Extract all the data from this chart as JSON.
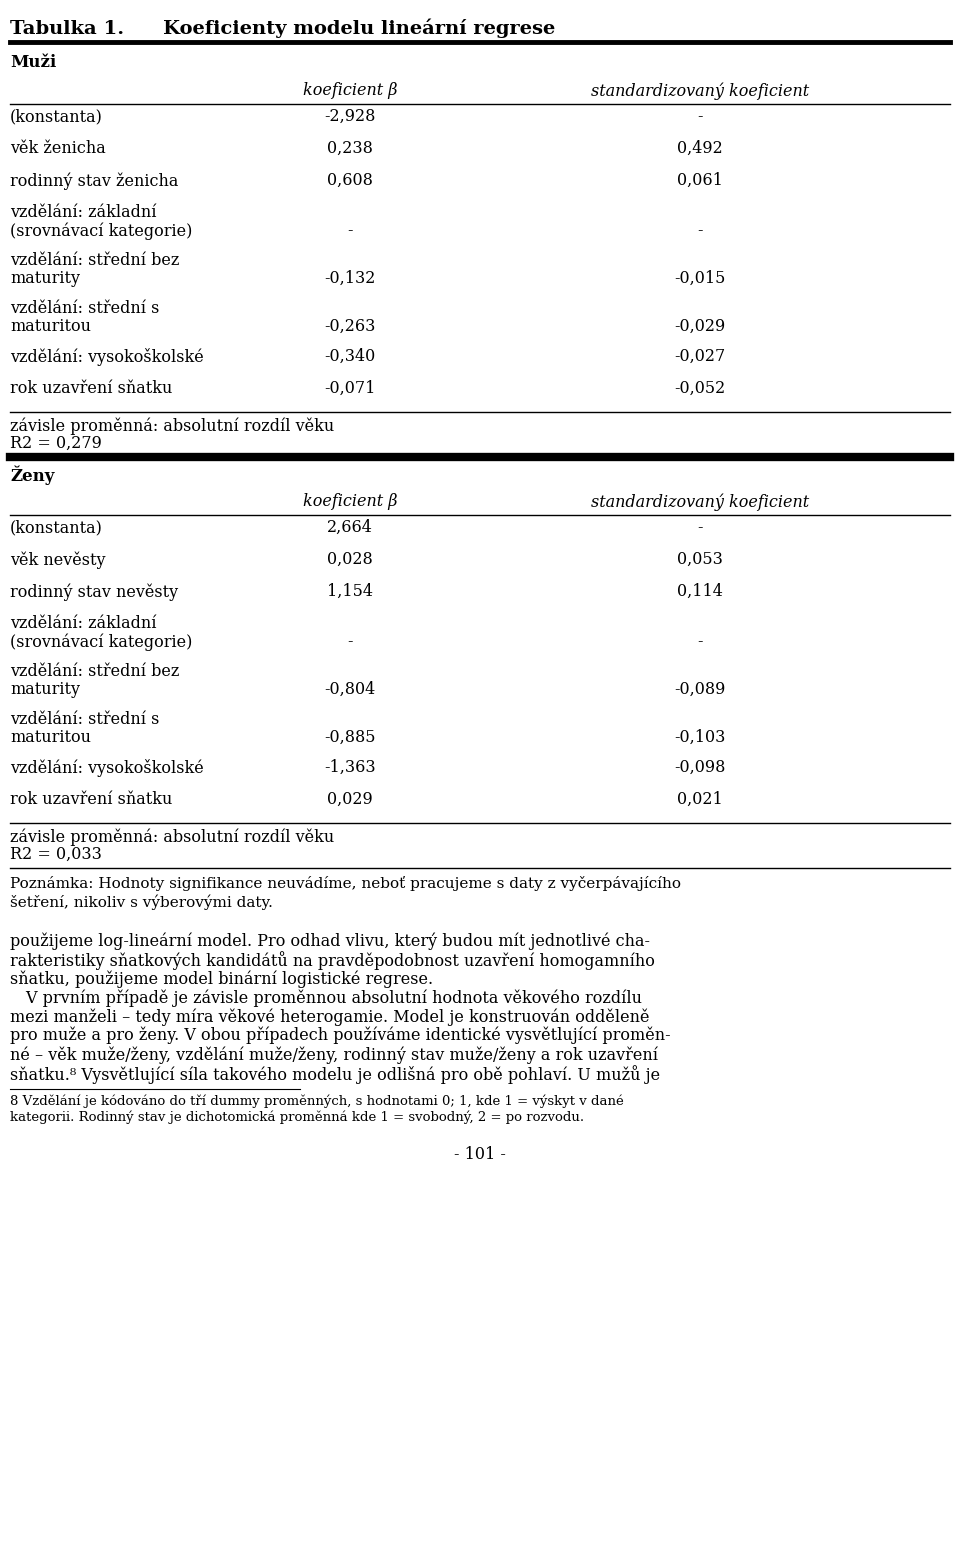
{
  "title": "Tabulka 1.  Koeficienty modelu lineární regrese",
  "section1_header": "Muži",
  "section2_header": "Ženy",
  "col_header1": "koeficient β",
  "col_header2": "standardizovaný koeficient",
  "men_rows": [
    [
      "(konstanta)",
      "-2,928",
      "-"
    ],
    [
      "věk ženicha",
      "0,238",
      "0,492"
    ],
    [
      "rodinný stav ženicha",
      "0,608",
      "0,061"
    ],
    [
      "vzdělání: základní\n(srovnávací kategorie)",
      "-",
      "-"
    ],
    [
      "vzdělání: střední bez\nmaturity",
      "-0,132",
      "-0,015"
    ],
    [
      "vzdělání: střední s\nmaturitou",
      "-0,263",
      "-0,029"
    ],
    [
      "vzdělání: vysokoškolské",
      "-0,340",
      "-0,027"
    ],
    [
      "rok uzavření sňatku",
      "-0,071",
      "-0,052"
    ]
  ],
  "men_footer1": "závisle proměnná: absolutní rozdíl věku",
  "men_footer2": "R2 = 0,279",
  "women_rows": [
    [
      "(konstanta)",
      "2,664",
      "-"
    ],
    [
      "věk nevěsty",
      "0,028",
      "0,053"
    ],
    [
      "rodinný stav nevěsty",
      "1,154",
      "0,114"
    ],
    [
      "vzdělání: základní\n(srovnávací kategorie)",
      "-",
      "-"
    ],
    [
      "vzdělání: střední bez\nmaturity",
      "-0,804",
      "-0,089"
    ],
    [
      "vzdělání: střední s\nmaturitou",
      "-0,885",
      "-0,103"
    ],
    [
      "vzdělání: vysokoškolské",
      "-1,363",
      "-0,098"
    ],
    [
      "rok uzavření sňatku",
      "0,029",
      "0,021"
    ]
  ],
  "women_footer1": "závisle proměnná: absolutní rozdíl věku",
  "women_footer2": "R2 = 0,033",
  "poznamka": "Poznámka: Hodnoty signifikance neuvádíme, neboť pracujeme s daty z vyčerpávajícího\nšetření, nikoliv s výberovými daty.",
  "body_text": "použijeme log-lineární model. Pro odhad vlivu, který budou mít jednotlivé cha-\nrakteristiky sňatkových kandidátů na pravděpodobnost uzavření homogamního\nsňatku, použijeme model binární logistické regrese.\n V prvním případě je závisle proměnnou absolutní hodnota věkového rozdílu\nmezi manželi – tedy míra věkové heterogamie. Model je konstruován odděleně\npro muže a pro ženy. V obou případech používáme identické vysvětlující proměn-\nné – věk muže/ženy, vzdělání muže/ženy, rodinný stav muže/ženy a rok uzavření\nsňatku.⁸ Vysvětlující síla takového modelu je odlišná pro obě pohlaví. U mužů je",
  "footnote": "8 Vzdělání je kódováno do tří dummy proměnných, s hodnotami 0; 1, kde 1 = výskyt v dané\nkategorii. Rodinný stav je dichotomická proměnná kde 1 = svobodný, 2 = po rozvodu.",
  "page_number": "- 101 -",
  "bg_color": "#ffffff",
  "text_color": "#000000",
  "thick_line_color": "#000000",
  "thin_line_color": "#000000"
}
